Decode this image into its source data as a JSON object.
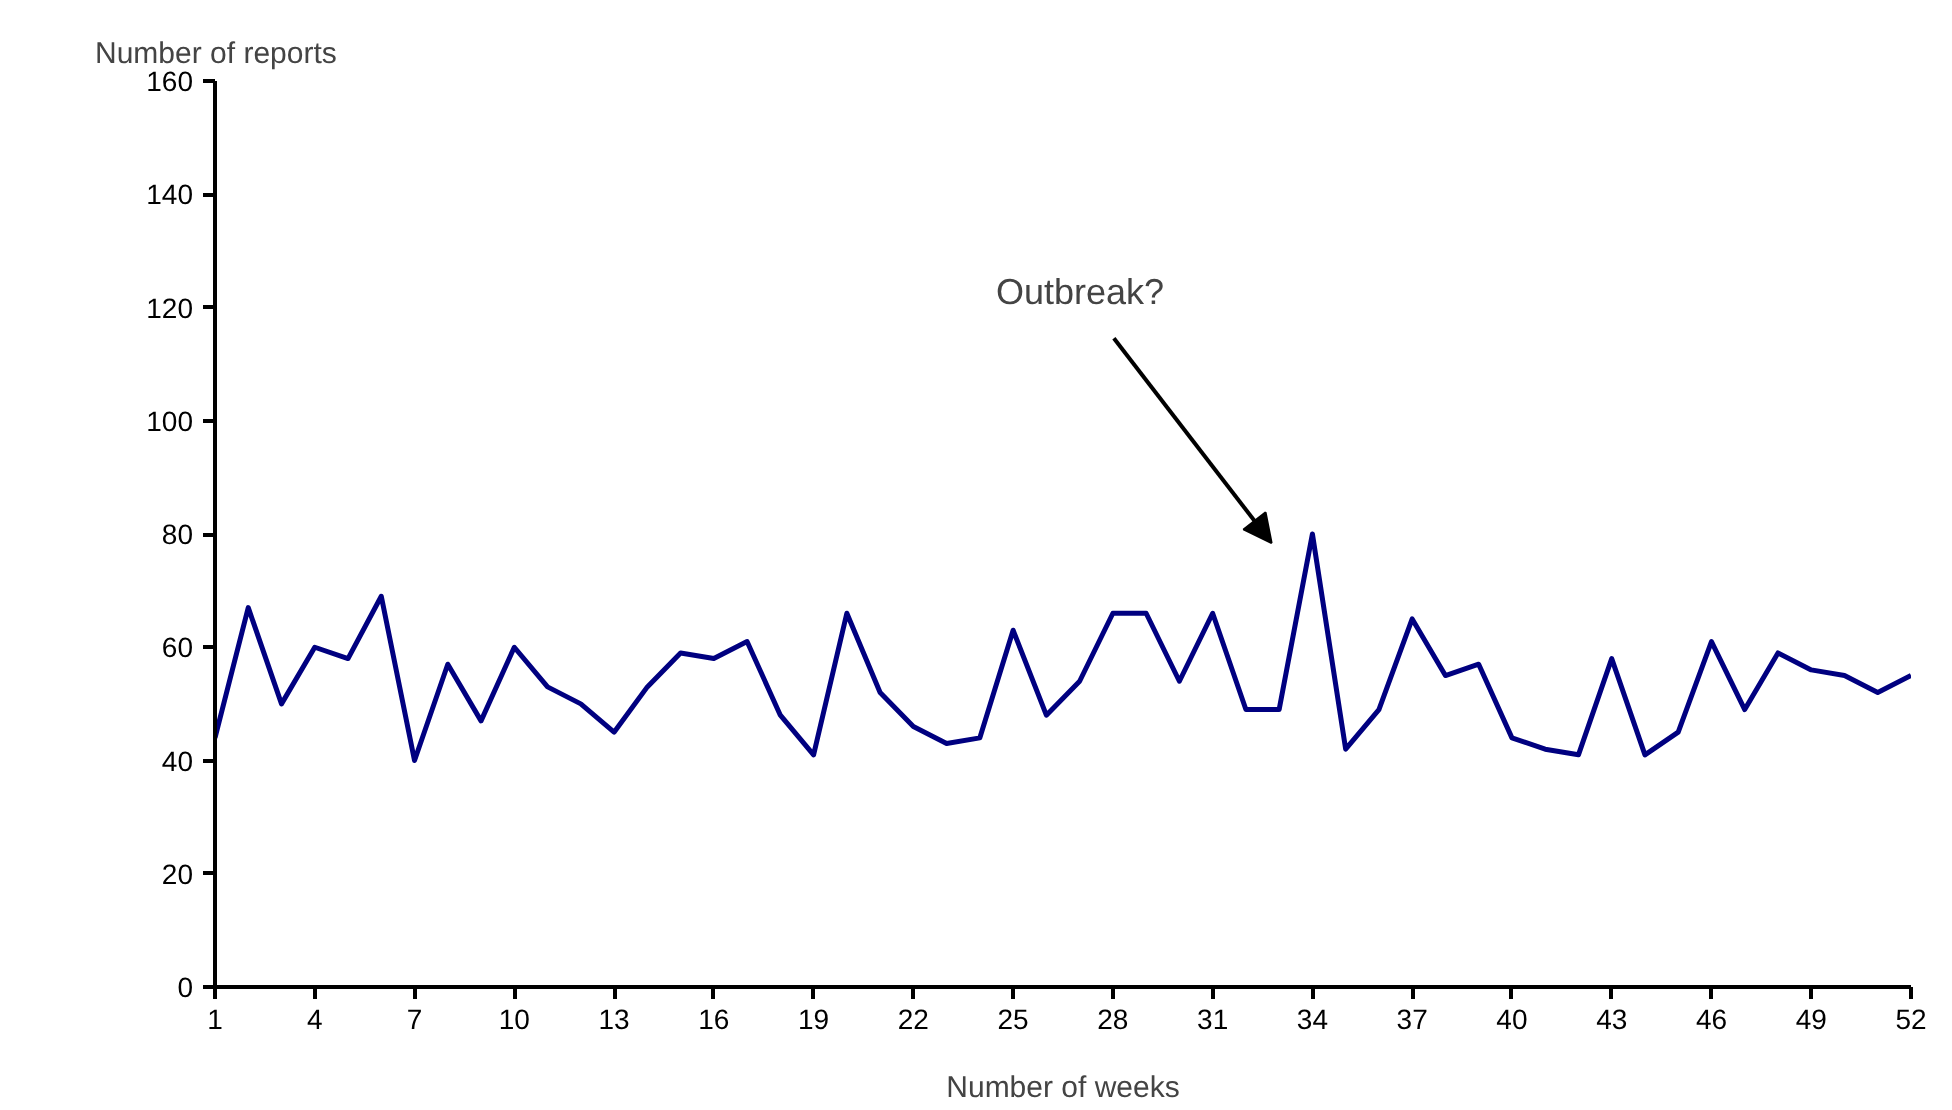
{
  "chart_data": {
    "type": "line",
    "xlabel": "Number of weeks",
    "ylabel": "Number of reports",
    "x": [
      1,
      2,
      3,
      4,
      5,
      6,
      7,
      8,
      9,
      10,
      11,
      12,
      13,
      14,
      15,
      16,
      17,
      18,
      19,
      20,
      21,
      22,
      23,
      24,
      25,
      26,
      27,
      28,
      29,
      30,
      31,
      32,
      33,
      34,
      35,
      36,
      37,
      38,
      39,
      40,
      41,
      42,
      43,
      44,
      45,
      46,
      47,
      48,
      49,
      50,
      51,
      52
    ],
    "series": [
      {
        "color": "#000080",
        "values": [
          44,
          67,
          50,
          60,
          58,
          69,
          40,
          57,
          47,
          60,
          53,
          50,
          45,
          53,
          59,
          58,
          61,
          48,
          41,
          66,
          52,
          46,
          43,
          44,
          63,
          48,
          54,
          66,
          66,
          54,
          66,
          49,
          49,
          80,
          42,
          49,
          65,
          55,
          57,
          44,
          42,
          41,
          58,
          41,
          45,
          61,
          49,
          59,
          56,
          55,
          52,
          55
        ]
      }
    ],
    "xlim": [
      1,
      52
    ],
    "xticks": [
      1,
      4,
      7,
      10,
      13,
      16,
      19,
      22,
      25,
      28,
      31,
      34,
      37,
      40,
      43,
      46,
      49,
      52
    ],
    "ylim": [
      0,
      160
    ],
    "yticks": [
      0,
      20,
      40,
      60,
      80,
      100,
      120,
      140,
      160
    ],
    "annotations": [
      "Outbreak?"
    ],
    "grid": false,
    "marker": "none",
    "line_style": "solid"
  }
}
